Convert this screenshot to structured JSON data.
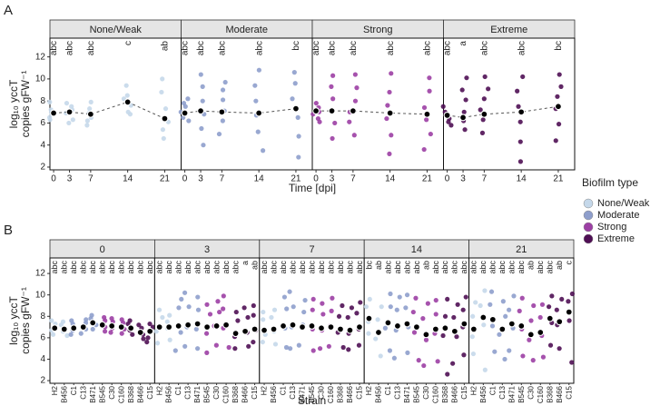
{
  "chart_data": [
    {
      "type": "strip",
      "panel_label": "A",
      "xlabel": "Time [dpi]",
      "ylabel": [
        "log₁₀ yccT",
        "copies gFW⁻¹"
      ],
      "x": [
        0,
        3,
        7,
        14,
        21
      ],
      "xlim": [
        -0.7,
        24.1
      ],
      "ylim": [
        1.75,
        13.7
      ],
      "yticks": [
        2,
        4,
        6,
        8,
        10,
        12
      ],
      "legend": {
        "title": "Biofilm type",
        "position": "right"
      },
      "facets": [
        {
          "title": "None/Weak",
          "color": "#c5d8ea",
          "letters": [
            "abc",
            "abc",
            "abc",
            "c",
            "ab"
          ],
          "means": [
            6.9,
            7.0,
            6.8,
            7.9,
            6.4
          ],
          "points": [
            [
              6.5,
              7.2,
              7.9,
              6.8,
              7.0,
              6.3
            ],
            [
              6.3,
              7.5,
              6.9,
              6.0,
              7.2,
              7.8
            ],
            [
              5.8,
              6.5,
              7.3,
              6.9,
              7.9,
              6.2
            ],
            [
              7.0,
              8.5,
              9.4,
              7.6,
              8.2,
              6.8
            ],
            [
              4.6,
              5.4,
              6.1,
              7.3,
              8.8,
              10.0
            ]
          ]
        },
        {
          "title": "Moderate",
          "color": "#8e9ecc",
          "letters": [
            "abc",
            "abc",
            "abc",
            "abc",
            "bc"
          ],
          "means": [
            6.9,
            7.1,
            7.0,
            6.9,
            7.3
          ],
          "points": [
            [
              6.2,
              7.0,
              7.8,
              6.5,
              7.5,
              8.2
            ],
            [
              4.0,
              5.5,
              6.8,
              8.0,
              9.3,
              10.4
            ],
            [
              5.0,
              6.2,
              7.1,
              8.1,
              9.0,
              9.7
            ],
            [
              3.5,
              5.2,
              6.7,
              8.0,
              9.4,
              10.8
            ],
            [
              2.9,
              4.8,
              6.5,
              8.2,
              9.6,
              10.6
            ]
          ]
        },
        {
          "title": "Strong",
          "color": "#9c3fa4",
          "letters": [
            "abc",
            "abc",
            "abc",
            "abc",
            "abc"
          ],
          "means": [
            7.1,
            7.1,
            7.1,
            6.9,
            6.8
          ],
          "points": [
            [
              6.4,
              7.0,
              7.8,
              6.8,
              7.4,
              6.1
            ],
            [
              4.6,
              6.0,
              7.2,
              8.2,
              9.3,
              10.3
            ],
            [
              4.9,
              6.1,
              7.0,
              8.0,
              9.2,
              10.4
            ],
            [
              3.2,
              4.9,
              6.4,
              7.6,
              8.8,
              10.5
            ],
            [
              3.6,
              5.0,
              6.3,
              7.4,
              8.9,
              10.1
            ]
          ]
        },
        {
          "title": "Extreme",
          "color": "#4f0f54",
          "letters": [
            "abc",
            "a",
            "abc",
            "abc",
            "bc"
          ],
          "means": [
            6.7,
            6.5,
            6.8,
            7.0,
            7.5
          ],
          "points": [
            [
              5.8,
              6.7,
              7.5,
              6.4,
              7.0,
              6.1
            ],
            [
              5.4,
              6.2,
              7.0,
              8.1,
              9.0,
              10.1
            ],
            [
              5.1,
              6.3,
              7.2,
              8.2,
              9.1,
              10.2
            ],
            [
              2.5,
              4.3,
              6.1,
              7.5,
              8.9,
              10.2
            ],
            [
              4.4,
              5.9,
              7.3,
              8.4,
              9.3,
              10.4
            ]
          ]
        }
      ]
    },
    {
      "type": "strip",
      "panel_label": "B",
      "xlabel": "Strain",
      "ylabel": [
        "log₁₀ yccT",
        "copies gFW⁻¹"
      ],
      "categories": [
        "H2",
        "B456",
        "C1",
        "C13",
        "B471",
        "B545",
        "C30",
        "C160",
        "B368",
        "B466",
        "C15"
      ],
      "category_colors": [
        "#c5d8ea",
        "#c5d8ea",
        "#8e9ecc",
        "#8e9ecc",
        "#8e9ecc",
        "#9c3fa4",
        "#9c3fa4",
        "#9c3fa4",
        "#4f0f54",
        "#4f0f54",
        "#4f0f54"
      ],
      "ylim": [
        1.75,
        13.45
      ],
      "yticks": [
        2,
        4,
        6,
        8,
        10,
        12
      ],
      "facets": [
        {
          "title": "0",
          "letters": [
            "abc",
            "abc",
            "abc",
            "abc",
            "abc",
            "abc",
            "abc",
            "abc",
            "abc",
            "abc",
            "abc"
          ],
          "means": [
            6.9,
            6.8,
            6.9,
            7.0,
            7.4,
            7.2,
            7.1,
            7.0,
            6.9,
            6.5,
            6.6
          ],
          "points": [
            [
              6.3,
              7.3,
              6.7,
              7.6
            ],
            [
              6.2,
              7.2,
              6.6,
              7.5
            ],
            [
              6.3,
              7.3,
              6.7,
              7.6
            ],
            [
              6.4,
              7.4,
              6.8,
              7.7
            ],
            [
              6.8,
              7.8,
              7.2,
              8.1
            ],
            [
              6.6,
              7.6,
              7.0,
              7.9
            ],
            [
              6.5,
              7.5,
              6.9,
              7.8
            ],
            [
              6.4,
              7.4,
              6.8,
              7.7
            ],
            [
              6.3,
              7.3,
              6.7,
              7.6
            ],
            [
              5.9,
              6.9,
              6.3,
              7.2
            ],
            [
              6.0,
              7.0,
              5.6,
              7.3
            ]
          ]
        },
        {
          "title": "3",
          "letters": [
            "abc",
            "abc",
            "abc",
            "abc",
            "abc",
            "abc",
            "abc",
            "abc",
            "abc",
            "a",
            "ab"
          ],
          "means": [
            7.0,
            7.0,
            7.1,
            7.2,
            7.3,
            7.0,
            7.1,
            7.2,
            6.4,
            6.6,
            6.8
          ],
          "points": [
            [
              5.5,
              7.9,
              6.6,
              8.6
            ],
            [
              5.8,
              8.1,
              6.9,
              7.5
            ],
            [
              4.8,
              8.8,
              6.5,
              9.6
            ],
            [
              5.2,
              8.9,
              7.0,
              10.2
            ],
            [
              5.0,
              8.6,
              6.8,
              9.8
            ],
            [
              4.6,
              8.2,
              6.4,
              9.1
            ],
            [
              5.3,
              8.4,
              7.1,
              9.4
            ],
            [
              5.1,
              8.7,
              6.9,
              9.9
            ],
            [
              5.0,
              7.6,
              6.1,
              8.4
            ],
            [
              5.2,
              7.9,
              6.5,
              8.8
            ],
            [
              5.6,
              8.1,
              6.7,
              9.0
            ]
          ]
        },
        {
          "title": "7",
          "letters": [
            "abc",
            "abc",
            "abc",
            "abc",
            "abc",
            "abc",
            "abc",
            "abc",
            "abc",
            "abc",
            "abc"
          ],
          "means": [
            6.7,
            6.8,
            7.1,
            7.2,
            7.0,
            7.1,
            6.9,
            7.0,
            6.8,
            6.7,
            7.0
          ],
          "points": [
            [
              5.6,
              7.7,
              6.3,
              8.4
            ],
            [
              5.4,
              7.9,
              6.6,
              8.6
            ],
            [
              5.1,
              8.7,
              6.9,
              9.8
            ],
            [
              5.0,
              8.9,
              7.0,
              10.3
            ],
            [
              5.3,
              8.4,
              7.2,
              9.5
            ],
            [
              4.8,
              8.6,
              6.8,
              9.6
            ],
            [
              5.0,
              8.2,
              6.7,
              9.2
            ],
            [
              5.2,
              8.5,
              7.1,
              9.7
            ],
            [
              5.1,
              8.0,
              6.5,
              9.0
            ],
            [
              4.9,
              7.9,
              6.4,
              8.8
            ],
            [
              5.3,
              8.3,
              6.8,
              9.3
            ]
          ]
        },
        {
          "title": "14",
          "letters": [
            "bc",
            "ab",
            "abc",
            "abc",
            "abc",
            "abc",
            "ab",
            "abc",
            "abc",
            "abc",
            "abc"
          ],
          "means": [
            7.8,
            6.5,
            7.4,
            7.1,
            7.3,
            7.0,
            6.3,
            6.8,
            6.9,
            6.6,
            7.3
          ],
          "points": [
            [
              6.4,
              8.9,
              7.5,
              9.6
            ],
            [
              4.3,
              7.7,
              5.9,
              8.9
            ],
            [
              4.8,
              8.9,
              6.9,
              10.1
            ],
            [
              4.1,
              8.6,
              6.7,
              9.8
            ],
            [
              4.6,
              8.8,
              7.0,
              10.0
            ],
            [
              3.9,
              8.4,
              6.5,
              9.7
            ],
            [
              3.4,
              7.8,
              5.8,
              9.2
            ],
            [
              3.8,
              8.2,
              6.4,
              9.5
            ],
            [
              2.6,
              8.0,
              6.2,
              9.6
            ],
            [
              3.6,
              7.9,
              6.1,
              9.1
            ],
            [
              4.4,
              8.6,
              7.0,
              9.8
            ]
          ]
        },
        {
          "title": "21",
          "letters": [
            "abc",
            "abc",
            "abc",
            "abc",
            "abc",
            "abc",
            "ab",
            "abc",
            "abc",
            "ab",
            "c"
          ],
          "means": [
            6.8,
            7.9,
            7.7,
            6.8,
            7.3,
            7.1,
            6.3,
            6.5,
            7.8,
            7.5,
            8.4
          ],
          "points": [
            [
              4.5,
              8.0,
              6.1,
              9.3
            ],
            [
              3.0,
              9.0,
              7.2,
              10.4
            ],
            [
              4.7,
              9.1,
              7.1,
              10.3
            ],
            [
              4.0,
              8.0,
              6.3,
              9.4
            ],
            [
              4.8,
              8.6,
              6.9,
              9.9
            ],
            [
              4.3,
              8.5,
              6.8,
              9.7
            ],
            [
              3.9,
              7.6,
              5.8,
              9.0
            ],
            [
              4.2,
              7.9,
              6.2,
              9.1
            ],
            [
              5.3,
              8.9,
              7.4,
              9.9
            ],
            [
              5.0,
              8.6,
              7.2,
              9.6
            ],
            [
              3.7,
              9.4,
              7.6,
              10.1
            ]
          ]
        }
      ]
    }
  ]
}
